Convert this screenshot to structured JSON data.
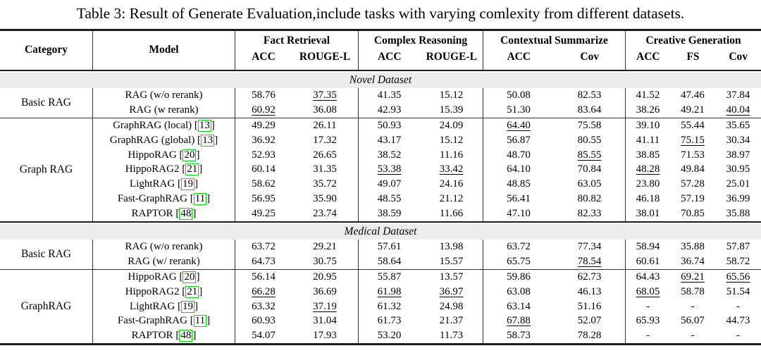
{
  "title": "Table 3: Result of Generate Evaluation,include tasks with varying comlexity from different datasets.",
  "colors": {
    "citation_green": "#00dd00",
    "band_gray": "#ececec",
    "rule_dark": "#1c1c1c"
  },
  "table": {
    "col_headers": {
      "category": "Category",
      "model": "Model",
      "groups": [
        {
          "label": "Fact Retrieval",
          "sub": [
            "ACC",
            "ROUGE-L"
          ]
        },
        {
          "label": "Complex Reasoning",
          "sub": [
            "ACC",
            "ROUGE-L"
          ]
        },
        {
          "label": "Contextual Summarize",
          "sub": [
            "ACC",
            "Cov"
          ]
        },
        {
          "label": "Creative Generation",
          "sub": [
            "ACC",
            "FS",
            "Cov"
          ]
        }
      ]
    },
    "sections": [
      {
        "name": "Novel Dataset",
        "groups": [
          {
            "category": "Basic RAG",
            "rows": [
              {
                "model": "RAG (w/o rerank)",
                "cite": null,
                "values": [
                  "58.76",
                  "37.35",
                  "41.35",
                  "15.12",
                  "50.08",
                  "82.53",
                  "41.52",
                  "47.46",
                  "37.84"
                ],
                "underline": [
                  1
                ]
              },
              {
                "model": "RAG (w rerank)",
                "cite": null,
                "values": [
                  "60.92",
                  "36.08",
                  "42.93",
                  "15.39",
                  "51.30",
                  "83.64",
                  "38.26",
                  "49.21",
                  "40.04"
                ],
                "underline": [
                  0,
                  8
                ]
              }
            ]
          },
          {
            "category": "Graph RAG",
            "rows": [
              {
                "model": "GraphRAG (local)",
                "cite": "13",
                "values": [
                  "49.29",
                  "26.11",
                  "50.93",
                  "24.09",
                  "64.40",
                  "75.58",
                  "39.10",
                  "55.44",
                  "35.65"
                ],
                "underline": [
                  4
                ]
              },
              {
                "model": "GraphRAG (global)",
                "cite": "13",
                "values": [
                  "36.92",
                  "17.32",
                  "43.17",
                  "15.12",
                  "56.87",
                  "80.55",
                  "41.11",
                  "75.15",
                  "30.34"
                ],
                "underline": [
                  7
                ]
              },
              {
                "model": "HippoRAG",
                "cite": "20",
                "values": [
                  "52.93",
                  "26.65",
                  "38.52",
                  "11.16",
                  "48.70",
                  "85.55",
                  "38.85",
                  "71.53",
                  "38.97"
                ],
                "underline": [
                  5
                ]
              },
              {
                "model": "HippoRAG2",
                "cite": "21",
                "values": [
                  "60.14",
                  "31.35",
                  "53.38",
                  "33.42",
                  "64.10",
                  "70.84",
                  "48.28",
                  "49.84",
                  "30.95"
                ],
                "underline": [
                  2,
                  3,
                  6
                ]
              },
              {
                "model": "LightRAG",
                "cite": "19",
                "values": [
                  "58.62",
                  "35.72",
                  "49.07",
                  "24.16",
                  "48.85",
                  "63.05",
                  "23.80",
                  "57.28",
                  "25.01"
                ],
                "underline": []
              },
              {
                "model": "Fast-GraphRAG",
                "cite": "11",
                "values": [
                  "56.95",
                  "35.90",
                  "48.55",
                  "21.12",
                  "56.41",
                  "80.82",
                  "46.18",
                  "57.19",
                  "36.99"
                ],
                "underline": []
              },
              {
                "model": "RAPTOR",
                "cite": "48",
                "values": [
                  "49.25",
                  "23.74",
                  "38.59",
                  "11.66",
                  "47.10",
                  "82.33",
                  "38.01",
                  "70.85",
                  "35.88"
                ],
                "underline": []
              }
            ]
          }
        ]
      },
      {
        "name": "Medical Dataset",
        "groups": [
          {
            "category": "Basic RAG",
            "rows": [
              {
                "model": "RAG (w/o rerank)",
                "cite": null,
                "values": [
                  "63.72",
                  "29.21",
                  "57.61",
                  "13.98",
                  "63.72",
                  "77.34",
                  "58.94",
                  "35.88",
                  "57.87"
                ],
                "underline": []
              },
              {
                "model": "RAG (w/ rerank)",
                "cite": null,
                "values": [
                  "64.73",
                  "30.75",
                  "58.64",
                  "15.57",
                  "65.75",
                  "78.54",
                  "60.61",
                  "36.74",
                  "58.72"
                ],
                "underline": [
                  5
                ]
              }
            ]
          },
          {
            "category": "GraphRAG",
            "rows": [
              {
                "model": "HippoRAG",
                "cite": "20",
                "values": [
                  "56.14",
                  "20.95",
                  "55.87",
                  "13.57",
                  "59.86",
                  "62.73",
                  "64.43",
                  "69.21",
                  "65.56"
                ],
                "underline": [
                  7,
                  8
                ]
              },
              {
                "model": "HippoRAG2",
                "cite": "21",
                "values": [
                  "66.28",
                  "36.69",
                  "61.98",
                  "36.97",
                  "63.08",
                  "46.13",
                  "68.05",
                  "58.78",
                  "51.54"
                ],
                "underline": [
                  0,
                  2,
                  3,
                  6
                ]
              },
              {
                "model": "LightRAG",
                "cite": "19",
                "values": [
                  "63.32",
                  "37.19",
                  "61.32",
                  "24.98",
                  "63.14",
                  "51.16",
                  "-",
                  "-",
                  "-"
                ],
                "underline": [
                  1
                ]
              },
              {
                "model": "Fast-GraphRAG",
                "cite": "11",
                "values": [
                  "60.93",
                  "31.04",
                  "61.73",
                  "21.37",
                  "67.88",
                  "52.07",
                  "65.93",
                  "56.07",
                  "44.73"
                ],
                "underline": [
                  4
                ]
              },
              {
                "model": "RAPTOR",
                "cite": "48",
                "values": [
                  "54.07",
                  "17.93",
                  "53.20",
                  "11.73",
                  "58.73",
                  "78.28",
                  "-",
                  "-",
                  "-"
                ],
                "underline": []
              }
            ]
          }
        ]
      }
    ]
  }
}
